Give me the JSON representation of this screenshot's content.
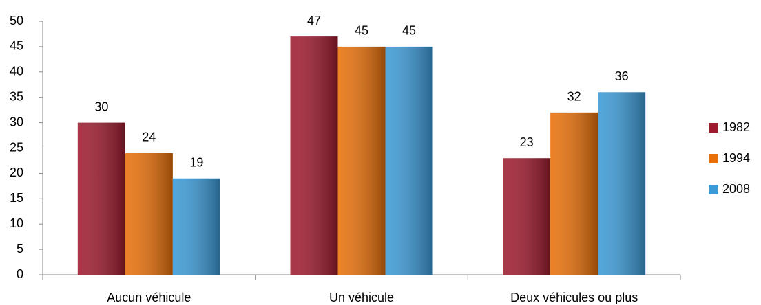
{
  "chart_data": {
    "type": "bar",
    "categories": [
      "Aucun véhicule",
      "Un véhicule",
      "Deux véhicules ou plus"
    ],
    "series": [
      {
        "name": "1982",
        "color": "#9e1b2f",
        "values": [
          30,
          47,
          23
        ]
      },
      {
        "name": "1994",
        "color": "#e8700a",
        "values": [
          24,
          45,
          32
        ]
      },
      {
        "name": "2008",
        "color": "#3c9ad6",
        "values": [
          19,
          45,
          36
        ]
      }
    ],
    "ylim": [
      0,
      50
    ],
    "yticks": [
      0,
      5,
      10,
      15,
      20,
      25,
      30,
      35,
      40,
      45,
      50
    ],
    "grid": false,
    "legend": "right"
  }
}
